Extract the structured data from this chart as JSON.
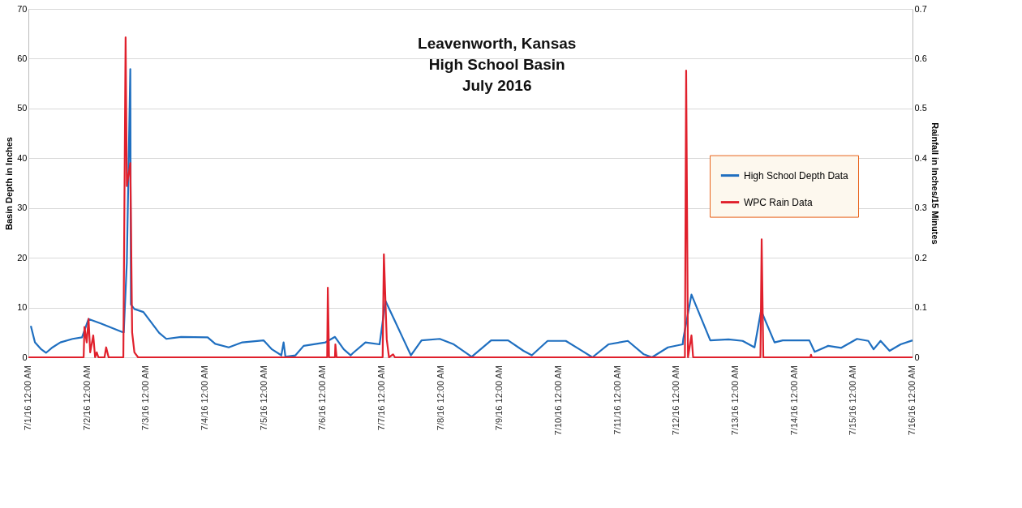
{
  "chart_data": {
    "type": "line",
    "title": "Leavenworth, Kansas\nHigh School Basin\nJuly 2016",
    "ylabel": "Basin Depth in Inches",
    "y2label": "Rainfall in Inches/15 Minutes",
    "xlim": [
      "2016-07-01T00:00",
      "2016-07-16T00:00"
    ],
    "xticks": [
      {
        "value": "2016-07-01T00:00",
        "label": "7/1/16 12:00 AM"
      },
      {
        "value": "2016-07-02T00:00",
        "label": "7/2/16 12:00 AM"
      },
      {
        "value": "2016-07-03T00:00",
        "label": "7/3/16 12:00 AM"
      },
      {
        "value": "2016-07-04T00:00",
        "label": "7/4/16 12:00 AM"
      },
      {
        "value": "2016-07-05T00:00",
        "label": "7/5/16 12:00 AM"
      },
      {
        "value": "2016-07-06T00:00",
        "label": "7/6/16 12:00 AM"
      },
      {
        "value": "2016-07-07T00:00",
        "label": "7/7/16 12:00 AM"
      },
      {
        "value": "2016-07-08T00:00",
        "label": "7/8/16 12:00 AM"
      },
      {
        "value": "2016-07-09T00:00",
        "label": "7/9/16 12:00 AM"
      },
      {
        "value": "2016-07-10T00:00",
        "label": "7/10/16 12:00 AM"
      },
      {
        "value": "2016-07-11T00:00",
        "label": "7/11/16 12:00 AM"
      },
      {
        "value": "2016-07-12T00:00",
        "label": "7/12/16 12:00 AM"
      },
      {
        "value": "2016-07-13T00:00",
        "label": "7/13/16 12:00 AM"
      },
      {
        "value": "2016-07-14T00:00",
        "label": "7/14/16 12:00 AM"
      },
      {
        "value": "2016-07-15T00:00",
        "label": "7/15/16 12:00 AM"
      },
      {
        "value": "2016-07-16T00:00",
        "label": "7/16/16 12:00 AM"
      }
    ],
    "ylim": [
      0,
      70
    ],
    "yticks": [
      0,
      10,
      20,
      30,
      40,
      50,
      60,
      70
    ],
    "y2lim": [
      0,
      0.7
    ],
    "y2ticks": [
      0,
      0.1,
      0.2,
      0.3,
      0.4,
      0.5,
      0.6,
      0.7
    ],
    "grid": true,
    "legend": "right",
    "line_style": "solid",
    "series": [
      {
        "name": "High School Depth Data",
        "color": "#1f6fc0",
        "x": [
          "2016-07-01T01:00",
          "2016-07-01T02:40",
          "2016-07-01T05:15",
          "2016-07-01T07:10",
          "2016-07-01T09:50",
          "2016-07-01T13:00",
          "2016-07-01T18:00",
          "2016-07-01T21:50",
          "2016-07-02T00:30",
          "2016-07-02T05:30",
          "2016-07-02T14:10",
          "2016-07-02T14:50",
          "2016-07-02T16:05",
          "2016-07-02T17:30",
          "2016-07-02T17:45",
          "2016-07-02T19:10",
          "2016-07-02T22:50",
          "2016-07-03T05:15",
          "2016-07-03T08:10",
          "2016-07-03T14:10",
          "2016-07-04T01:00",
          "2016-07-04T04:05",
          "2016-07-04T09:35",
          "2016-07-04T15:05",
          "2016-07-04T23:45",
          "2016-07-05T03:10",
          "2016-07-05T07:00",
          "2016-07-05T07:55",
          "2016-07-05T08:40",
          "2016-07-05T12:45",
          "2016-07-05T16:05",
          "2016-07-06T01:00",
          "2016-07-06T04:50",
          "2016-07-06T08:25",
          "2016-07-06T11:15",
          "2016-07-06T12:15",
          "2016-07-06T17:15",
          "2016-07-06T23:00",
          "2016-07-07T01:25",
          "2016-07-07T05:15",
          "2016-07-07T08:55",
          "2016-07-07T11:45",
          "2016-07-07T16:05",
          "2016-07-07T23:30",
          "2016-07-08T05:15",
          "2016-07-08T12:30",
          "2016-07-08T20:25",
          "2016-07-09T03:20",
          "2016-07-09T09:35",
          "2016-07-09T13:00",
          "2016-07-09T19:25",
          "2016-07-10T02:50",
          "2016-07-10T08:25",
          "2016-07-10T13:40",
          "2016-07-10T20:10",
          "2016-07-11T04:05",
          "2016-07-11T10:35",
          "2016-07-11T13:55",
          "2016-07-11T20:25",
          "2016-07-12T02:25",
          "2016-07-12T02:40",
          "2016-07-12T06:00",
          "2016-07-12T13:40",
          "2016-07-12T21:05",
          "2016-07-13T02:50",
          "2016-07-13T07:40",
          "2016-07-13T10:20",
          "2016-07-13T15:50",
          "2016-07-13T19:10",
          "2016-07-14T06:00",
          "2016-07-14T08:10",
          "2016-07-14T13:40",
          "2016-07-14T19:00",
          "2016-07-15T01:25",
          "2016-07-15T06:00",
          "2016-07-15T08:10",
          "2016-07-15T11:00",
          "2016-07-15T14:40",
          "2016-07-15T19:10",
          "2016-07-16T00:00"
        ],
        "values": [
          6.3,
          3.0,
          1.6,
          0.9,
          2.0,
          3.0,
          3.7,
          4.0,
          7.7,
          6.8,
          5.1,
          5.0,
          19,
          57.9,
          10.6,
          9.7,
          9.1,
          4.9,
          3.7,
          4.1,
          4.0,
          2.7,
          2.0,
          3.0,
          3.4,
          1.6,
          0.4,
          3.0,
          0.1,
          0.4,
          2.3,
          3.0,
          4.1,
          1.6,
          0.4,
          0.9,
          3.0,
          2.6,
          11.3,
          7.3,
          3.4,
          0.4,
          3.4,
          3.7,
          2.6,
          0.1,
          3.4,
          3.4,
          1.3,
          0.4,
          3.3,
          3.3,
          1.6,
          0.0,
          2.6,
          3.3,
          0.6,
          0.0,
          2.0,
          2.6,
          3.7,
          12.6,
          3.4,
          3.6,
          3.3,
          2.0,
          9.4,
          3.0,
          3.4,
          3.4,
          1.1,
          2.3,
          1.9,
          3.7,
          3.3,
          1.6,
          3.3,
          1.3,
          2.6,
          3.4
        ]
      },
      {
        "name": "WPC Rain Data",
        "color": "#e0202c",
        "axis": "y2",
        "x": [
          "2016-07-01T00:00",
          "2016-07-01T22:30",
          "2016-07-01T22:50",
          "2016-07-01T23:45",
          "2016-07-02T00:30",
          "2016-07-02T01:10",
          "2016-07-02T02:25",
          "2016-07-02T03:10",
          "2016-07-02T03:50",
          "2016-07-02T04:30",
          "2016-07-02T07:00",
          "2016-07-02T07:40",
          "2016-07-02T08:40",
          "2016-07-02T14:40",
          "2016-07-02T15:35",
          "2016-07-02T16:05",
          "2016-07-02T17:30",
          "2016-07-02T18:15",
          "2016-07-02T19:10",
          "2016-07-02T20:40",
          "2016-07-06T01:40",
          "2016-07-06T01:55",
          "2016-07-06T02:25",
          "2016-07-06T04:50",
          "2016-07-06T05:00",
          "2016-07-06T05:30",
          "2016-07-07T00:15",
          "2016-07-07T00:45",
          "2016-07-07T01:55",
          "2016-07-07T02:50",
          "2016-07-07T04:30",
          "2016-07-07T05:15",
          "2016-07-12T03:20",
          "2016-07-12T03:50",
          "2016-07-12T04:35",
          "2016-07-12T06:00",
          "2016-07-12T06:40",
          "2016-07-13T10:05",
          "2016-07-13T10:35",
          "2016-07-13T11:15",
          "2016-07-14T06:25",
          "2016-07-14T06:40",
          "2016-07-14T07:00",
          "2016-07-16T00:00"
        ],
        "values": [
          0,
          0,
          0.061,
          0.03,
          0.077,
          0.01,
          0.044,
          0,
          0.01,
          0,
          0,
          0.02,
          0,
          0,
          0.643,
          0.344,
          0.39,
          0.05,
          0.01,
          0,
          0,
          0.14,
          0,
          0,
          0.026,
          0,
          0,
          0.207,
          0.036,
          0,
          0.006,
          0,
          0,
          0.576,
          0,
          0.044,
          0,
          0,
          0.237,
          0,
          0,
          0.005,
          0,
          0
        ]
      }
    ]
  }
}
